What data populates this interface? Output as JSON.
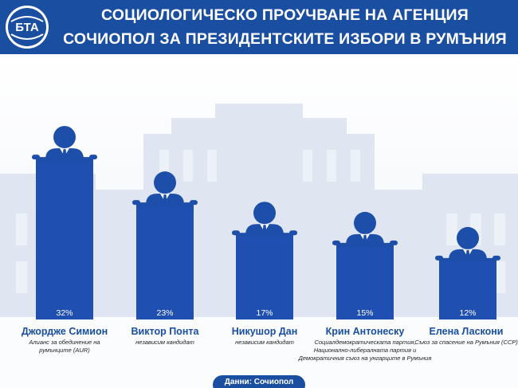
{
  "header": {
    "logo_text": "БТА",
    "title_line1": "СОЦИОЛОГИЧЕСКО ПРОУЧВАНЕ НА АГЕНЦИЯ",
    "title_line2": "СОЧИОПОЛ ЗА ПРЕЗИДЕНТСКИТЕ ИЗБОРИ В РУМЪНИЯ"
  },
  "colors": {
    "brand_blue": "#1a4ea0",
    "bar_blue": "#1f4fb0",
    "figure_blue": "#1c4eaa"
  },
  "chart_data": {
    "type": "bar",
    "categories": [
      "Джордже Симион",
      "Виктор Понта",
      "Никушор Дан",
      "Крин Антонеску",
      "Елена Ласкони"
    ],
    "subtitles": [
      "Алианс за обединение на румънците (AUR)",
      "независим кандидат",
      "независим кандидат",
      "Социалдемократическата партия, Национално-либералната партия и Демократичния съюз на унгарците в Румъния",
      "Съюз за спасение на Румъния (ССР)"
    ],
    "values": [
      32,
      23,
      17,
      15,
      12
    ],
    "value_labels": [
      "32%",
      "23%",
      "17%",
      "15%",
      "12%"
    ],
    "ylim": [
      0,
      35
    ],
    "grid": false,
    "legend": "none"
  },
  "footer": {
    "source": "Данни: Сочиопол"
  }
}
